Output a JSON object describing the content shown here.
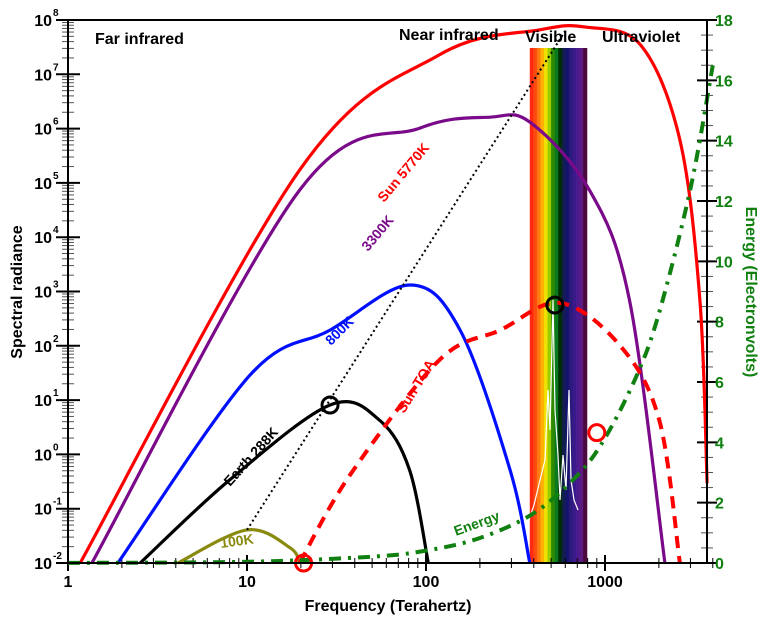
{
  "chart_data": {
    "type": "line",
    "title": "",
    "xlabel": "Frequency (Terahertz)",
    "ylabel": "Spectral radiance",
    "y2label": "Energy (Electronvolts)",
    "xscale": "log",
    "yscale": "log",
    "xlim": [
      1,
      4000
    ],
    "ylim_log10": [
      -2,
      8
    ],
    "y2lim": [
      0,
      18
    ],
    "grid": false,
    "x_ticks": [
      "1",
      "10",
      "100",
      "1000"
    ],
    "x_tick_values": [
      1,
      10,
      100,
      1000
    ],
    "y_ticks": [
      {
        "base": "10",
        "exp": "8"
      },
      {
        "base": "10",
        "exp": "7"
      },
      {
        "base": "10",
        "exp": "6"
      },
      {
        "base": "10",
        "exp": "5"
      },
      {
        "base": "10",
        "exp": "4"
      },
      {
        "base": "10",
        "exp": "3"
      },
      {
        "base": "10",
        "exp": "2"
      },
      {
        "base": "10",
        "exp": "1"
      },
      {
        "base": "10",
        "exp": "0"
      },
      {
        "base": "10",
        "exp": "-1"
      },
      {
        "base": "10",
        "exp": "-2"
      }
    ],
    "y2_ticks": [
      "0",
      "2",
      "4",
      "6",
      "8",
      "10",
      "12",
      "14",
      "16",
      "18"
    ],
    "regions": [
      {
        "label": "Far infrared"
      },
      {
        "label": "Near infrared"
      },
      {
        "label": "Visible"
      },
      {
        "label": "Ultraviolet"
      }
    ],
    "visible_band_thz": [
      380,
      790
    ],
    "visible_colors": [
      "#ff2a10",
      "#ff4a10",
      "#ff7a10",
      "#ffb000",
      "#f0e000",
      "#9acd00",
      "#2e8b00",
      "#0a7a20",
      "#003000",
      "#10204a",
      "#14146e",
      "#2a1a7a",
      "#3a1a8a",
      "#4b1a8f",
      "#5a1a80",
      "#4a0a40"
    ],
    "series": [
      {
        "name": "Sun 5770K",
        "label": "Sun 5770K",
        "color": "#ff0000",
        "style": "solid",
        "x": [
          1.17,
          19.7,
          119,
          433,
          778,
          1580,
          2620,
          3390,
          3720
        ],
        "log10_y": [
          -2,
          5.24,
          7.36,
          7.82,
          7.87,
          7.54,
          5.79,
          2.84,
          -0.53
        ]
      },
      {
        "name": "3300K",
        "label": "3300K",
        "color": "#7a0a8a",
        "style": "solid",
        "x": [
          1.36,
          19.7,
          92.4,
          228,
          380,
          818,
          1370,
          2160
        ],
        "log10_y": [
          -2,
          4.87,
          6.01,
          6.21,
          6.12,
          4.87,
          2.84,
          -2
        ]
      },
      {
        "name": "800K",
        "label": "800K",
        "color": "#0010ff",
        "style": "solid",
        "x": [
          1.9,
          10.4,
          29.1,
          81.4,
          155,
          295,
          380
        ],
        "log10_y": [
          -2,
          1.46,
          2.29,
          3.12,
          2.29,
          -0.29,
          -2
        ]
      },
      {
        "name": "Earth 288K",
        "label": "Earth 288K",
        "color": "#000000",
        "style": "solid",
        "x": [
          2.53,
          8.0,
          29.1,
          55,
          81,
          103
        ],
        "log10_y": [
          -2,
          -0.47,
          0.91,
          0.63,
          -0.29,
          -2
        ]
      },
      {
        "name": "100K",
        "label": "100K",
        "color": "#8a8a10",
        "style": "solid",
        "x": [
          4.11,
          10,
          17.4,
          19.7
        ],
        "log10_y": [
          -2,
          -1.39,
          -1.72,
          -2
        ]
      },
      {
        "name": "Sun TOA",
        "label": "Sun TOA",
        "color": "#ff0000",
        "style": "dashed",
        "x": [
          19.7,
          37.6,
          119,
          260,
          560,
          1210,
          2010,
          2620
        ],
        "log10_y": [
          -2,
          -0.38,
          1.74,
          2.29,
          2.79,
          2.01,
          0.63,
          -2
        ]
      },
      {
        "name": "Energy",
        "label": "Energy",
        "color": "#108010",
        "style": "dashdot",
        "axis": "right",
        "x": [
          1,
          10,
          50,
          100,
          200,
          400,
          700,
          1000,
          1500,
          2000,
          3000,
          4000
        ],
        "y": [
          0.004,
          0.041,
          0.21,
          0.41,
          0.83,
          1.65,
          2.9,
          4.14,
          6.2,
          8.27,
          12.4,
          16.5
        ]
      }
    ],
    "wien_lines": [
      {
        "from_x": 10,
        "from_log10_y": -1.39,
        "to_x": 600,
        "to_log10_y": 7.8,
        "style": "dotted"
      }
    ],
    "markers": [
      {
        "type": "circle",
        "color": "#000000",
        "x": 29.1,
        "log10_y": 0.91
      },
      {
        "type": "circle",
        "color": "#000000",
        "x": 525,
        "log10_y": 2.75
      },
      {
        "type": "circle",
        "color": "#ff0000",
        "x": 20.7,
        "log10_y": -2
      },
      {
        "type": "circle",
        "color": "#ff0000",
        "x": 900,
        "log10_y": 0.4
      }
    ]
  }
}
